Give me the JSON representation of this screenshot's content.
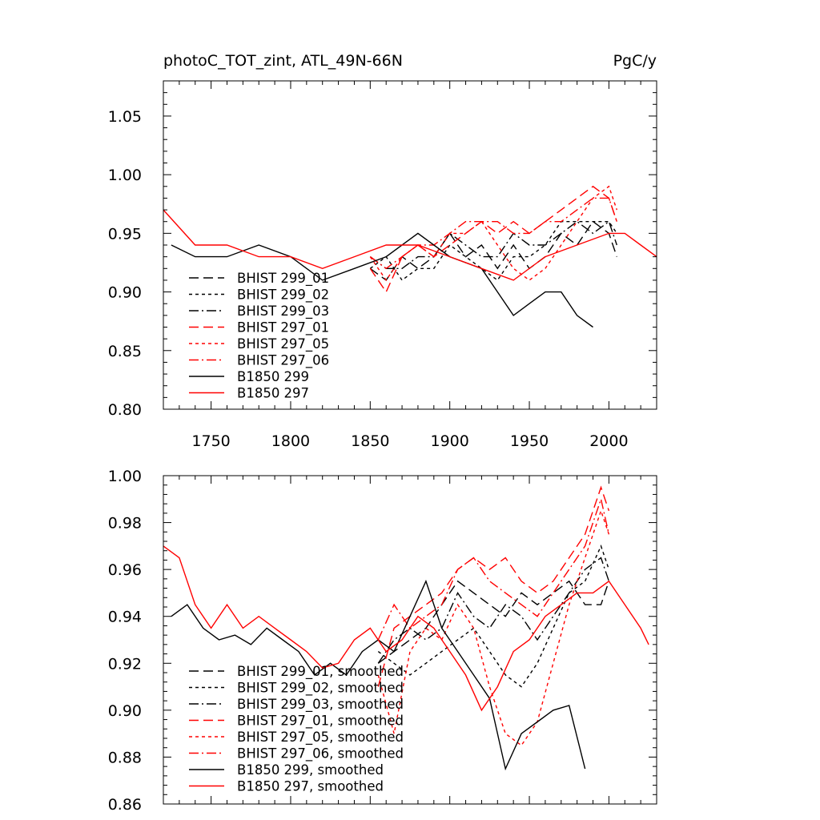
{
  "chart_data": [
    {
      "type": "line",
      "title": "photoC_TOT_zint, ATL_49N-66N",
      "units": "PgC/y",
      "xlim": [
        1720,
        2030
      ],
      "ylim": [
        0.8,
        1.08
      ],
      "xticks": [
        1750,
        1800,
        1850,
        1900,
        1950,
        2000
      ],
      "yticks": [
        0.8,
        0.85,
        0.9,
        0.95,
        1.0,
        1.05
      ],
      "legend_position": "bottom-left",
      "series": [
        {
          "name": "BHIST 299_01",
          "color": "#000000",
          "dash": "long-dash",
          "x_range": [
            1850,
            2005
          ],
          "x": [
            1850,
            1860,
            1870,
            1880,
            1890,
            1900,
            1910,
            1920,
            1930,
            1940,
            1950,
            1960,
            1970,
            1980,
            1990,
            2000,
            2005
          ],
          "y": [
            0.92,
            0.91,
            0.93,
            0.92,
            0.93,
            0.95,
            0.93,
            0.94,
            0.92,
            0.94,
            0.92,
            0.93,
            0.95,
            0.94,
            0.96,
            0.95,
            0.93
          ]
        },
        {
          "name": "BHIST 299_02",
          "color": "#000000",
          "dash": "short-dash",
          "x_range": [
            1850,
            2005
          ],
          "x": [
            1850,
            1860,
            1870,
            1880,
            1890,
            1900,
            1910,
            1920,
            1930,
            1940,
            1950,
            1960,
            1970,
            1980,
            1990,
            2000,
            2005
          ],
          "y": [
            0.92,
            0.93,
            0.91,
            0.92,
            0.92,
            0.94,
            0.93,
            0.92,
            0.91,
            0.93,
            0.93,
            0.94,
            0.96,
            0.96,
            0.96,
            0.96,
            0.95
          ]
        },
        {
          "name": "BHIST 299_03",
          "color": "#000000",
          "dash": "dash-dot",
          "x_range": [
            1850,
            2005
          ],
          "x": [
            1850,
            1860,
            1870,
            1880,
            1890,
            1900,
            1910,
            1920,
            1930,
            1940,
            1950,
            1960,
            1970,
            1980,
            1990,
            2000,
            2005
          ],
          "y": [
            0.93,
            0.92,
            0.92,
            0.93,
            0.93,
            0.95,
            0.94,
            0.93,
            0.93,
            0.95,
            0.94,
            0.94,
            0.95,
            0.96,
            0.95,
            0.96,
            0.94
          ]
        },
        {
          "name": "BHIST 297_01",
          "color": "#ff0000",
          "dash": "long-dash",
          "x_range": [
            1850,
            2005
          ],
          "x": [
            1850,
            1860,
            1870,
            1880,
            1890,
            1900,
            1910,
            1920,
            1930,
            1940,
            1950,
            1960,
            1970,
            1980,
            1990,
            2000,
            2005
          ],
          "y": [
            0.92,
            0.9,
            0.93,
            0.94,
            0.93,
            0.94,
            0.95,
            0.96,
            0.95,
            0.96,
            0.95,
            0.96,
            0.97,
            0.98,
            0.99,
            0.98,
            0.96
          ]
        },
        {
          "name": "BHIST 297_05",
          "color": "#ff0000",
          "dash": "short-dash",
          "x_range": [
            1850,
            2005
          ],
          "x": [
            1850,
            1860,
            1870,
            1880,
            1890,
            1900,
            1910,
            1920,
            1930,
            1940,
            1950,
            1960,
            1970,
            1980,
            1990,
            2000,
            2005
          ],
          "y": [
            0.93,
            0.91,
            0.93,
            0.94,
            0.93,
            0.95,
            0.95,
            0.96,
            0.94,
            0.92,
            0.91,
            0.92,
            0.94,
            0.96,
            0.98,
            0.99,
            0.97
          ]
        },
        {
          "name": "BHIST 297_06",
          "color": "#ff0000",
          "dash": "dash-dot",
          "x_range": [
            1850,
            2005
          ],
          "x": [
            1850,
            1860,
            1870,
            1880,
            1890,
            1900,
            1910,
            1920,
            1930,
            1940,
            1950,
            1960,
            1970,
            1980,
            1990,
            2000,
            2005
          ],
          "y": [
            0.93,
            0.92,
            0.93,
            0.94,
            0.94,
            0.95,
            0.96,
            0.96,
            0.96,
            0.95,
            0.95,
            0.96,
            0.96,
            0.97,
            0.98,
            0.98,
            0.96
          ]
        },
        {
          "name": "B1850 299",
          "color": "#000000",
          "dash": "solid",
          "x_range": [
            1725,
            1990
          ],
          "x": [
            1725,
            1740,
            1760,
            1780,
            1800,
            1820,
            1840,
            1860,
            1880,
            1900,
            1920,
            1930,
            1940,
            1950,
            1960,
            1970,
            1980,
            1990
          ],
          "y": [
            0.94,
            0.93,
            0.93,
            0.94,
            0.93,
            0.91,
            0.92,
            0.93,
            0.95,
            0.93,
            0.92,
            0.9,
            0.88,
            0.89,
            0.9,
            0.9,
            0.88,
            0.87
          ]
        },
        {
          "name": "B1850 297",
          "color": "#ff0000",
          "dash": "solid",
          "x_range": [
            1720,
            2030
          ],
          "x": [
            1720,
            1740,
            1760,
            1780,
            1800,
            1820,
            1840,
            1860,
            1880,
            1900,
            1920,
            1940,
            1960,
            1980,
            2000,
            2010,
            2020,
            2030
          ],
          "y": [
            0.97,
            0.94,
            0.94,
            0.93,
            0.93,
            0.92,
            0.93,
            0.94,
            0.94,
            0.93,
            0.92,
            0.91,
            0.93,
            0.94,
            0.95,
            0.95,
            0.94,
            0.93
          ]
        }
      ]
    },
    {
      "type": "line",
      "xlim": [
        1720,
        2030
      ],
      "ylim": [
        0.86,
        1.0
      ],
      "yticks": [
        0.86,
        0.88,
        0.9,
        0.92,
        0.94,
        0.96,
        0.98,
        1.0
      ],
      "legend_position": "bottom-left",
      "series": [
        {
          "name": "BHIST 299_01, smoothed",
          "color": "#000000",
          "dash": "long-dash",
          "x": [
            1855,
            1865,
            1875,
            1885,
            1895,
            1905,
            1915,
            1925,
            1935,
            1945,
            1955,
            1965,
            1975,
            1985,
            1995,
            2000
          ],
          "y": [
            0.92,
            0.925,
            0.93,
            0.935,
            0.945,
            0.955,
            0.95,
            0.945,
            0.94,
            0.95,
            0.945,
            0.95,
            0.955,
            0.945,
            0.945,
            0.955
          ]
        },
        {
          "name": "BHIST 299_02, smoothed",
          "color": "#000000",
          "dash": "short-dash",
          "x": [
            1855,
            1865,
            1875,
            1885,
            1895,
            1905,
            1915,
            1925,
            1935,
            1945,
            1955,
            1965,
            1975,
            1985,
            1995,
            2000
          ],
          "y": [
            0.925,
            0.92,
            0.915,
            0.92,
            0.925,
            0.93,
            0.935,
            0.925,
            0.915,
            0.91,
            0.92,
            0.935,
            0.95,
            0.955,
            0.97,
            0.96
          ]
        },
        {
          "name": "BHIST 299_03, smoothed",
          "color": "#000000",
          "dash": "dash-dot",
          "x": [
            1855,
            1865,
            1875,
            1885,
            1895,
            1905,
            1915,
            1925,
            1935,
            1945,
            1955,
            1965,
            1975,
            1985,
            1995,
            2000
          ],
          "y": [
            0.92,
            0.93,
            0.935,
            0.93,
            0.935,
            0.95,
            0.94,
            0.935,
            0.945,
            0.94,
            0.93,
            0.94,
            0.95,
            0.96,
            0.965,
            0.955
          ]
        },
        {
          "name": "BHIST 297_01, smoothed",
          "color": "#ff0000",
          "dash": "long-dash",
          "x": [
            1855,
            1865,
            1875,
            1885,
            1895,
            1905,
            1915,
            1925,
            1935,
            1945,
            1955,
            1965,
            1975,
            1985,
            1995,
            2000
          ],
          "y": [
            0.91,
            0.935,
            0.94,
            0.945,
            0.95,
            0.96,
            0.965,
            0.96,
            0.965,
            0.955,
            0.95,
            0.955,
            0.965,
            0.975,
            0.995,
            0.985
          ]
        },
        {
          "name": "BHIST 297_05, smoothed",
          "color": "#ff0000",
          "dash": "short-dash",
          "x": [
            1855,
            1865,
            1875,
            1885,
            1895,
            1905,
            1915,
            1925,
            1935,
            1945,
            1955,
            1965,
            1975,
            1985,
            1995,
            2000
          ],
          "y": [
            0.915,
            0.89,
            0.925,
            0.935,
            0.93,
            0.945,
            0.935,
            0.91,
            0.89,
            0.885,
            0.895,
            0.92,
            0.945,
            0.965,
            0.985,
            0.975
          ]
        },
        {
          "name": "BHIST 297_06, smoothed",
          "color": "#ff0000",
          "dash": "dash-dot",
          "x": [
            1855,
            1865,
            1875,
            1885,
            1895,
            1905,
            1915,
            1925,
            1935,
            1945,
            1955,
            1965,
            1975,
            1985,
            1995,
            2000
          ],
          "y": [
            0.93,
            0.945,
            0.935,
            0.94,
            0.945,
            0.96,
            0.965,
            0.955,
            0.95,
            0.945,
            0.94,
            0.95,
            0.96,
            0.97,
            0.99,
            0.975
          ]
        },
        {
          "name": "B1850 299, smoothed",
          "color": "#000000",
          "dash": "solid",
          "x": [
            1725,
            1735,
            1745,
            1755,
            1765,
            1775,
            1785,
            1795,
            1805,
            1815,
            1825,
            1835,
            1845,
            1855,
            1865,
            1875,
            1885,
            1895,
            1905,
            1915,
            1925,
            1935,
            1945,
            1955,
            1965,
            1975,
            1985
          ],
          "y": [
            0.94,
            0.945,
            0.935,
            0.93,
            0.932,
            0.928,
            0.935,
            0.93,
            0.925,
            0.915,
            0.92,
            0.915,
            0.925,
            0.93,
            0.925,
            0.94,
            0.955,
            0.935,
            0.925,
            0.915,
            0.905,
            0.875,
            0.89,
            0.895,
            0.9,
            0.902,
            0.875
          ]
        },
        {
          "name": "B1850 297, smoothed",
          "color": "#ff0000",
          "dash": "solid",
          "x": [
            1720,
            1730,
            1740,
            1750,
            1760,
            1770,
            1780,
            1790,
            1800,
            1810,
            1820,
            1830,
            1840,
            1850,
            1860,
            1870,
            1880,
            1890,
            1900,
            1910,
            1920,
            1930,
            1940,
            1950,
            1960,
            1970,
            1980,
            1990,
            2000,
            2010,
            2020,
            2025
          ],
          "y": [
            0.97,
            0.965,
            0.945,
            0.935,
            0.945,
            0.935,
            0.94,
            0.935,
            0.93,
            0.925,
            0.918,
            0.92,
            0.93,
            0.935,
            0.925,
            0.93,
            0.94,
            0.935,
            0.925,
            0.915,
            0.9,
            0.91,
            0.925,
            0.93,
            0.94,
            0.945,
            0.95,
            0.95,
            0.955,
            0.945,
            0.935,
            0.928
          ]
        }
      ]
    }
  ]
}
